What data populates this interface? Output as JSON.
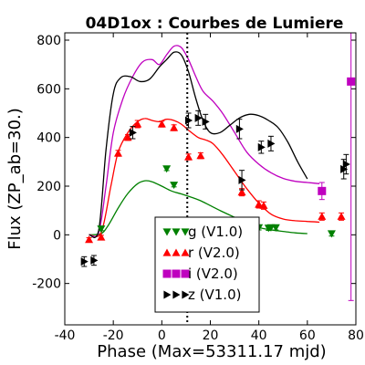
{
  "chart_data": {
    "type": "scatter",
    "title": "04D1ox : Courbes de Lumiere",
    "xlabel": "Phase (Max=53311.17 mjd)",
    "ylabel": "Flux (ZP_ab=30.)",
    "xlim": [
      -40,
      80
    ],
    "ylim": [
      -370,
      830
    ],
    "xticks": [
      -40,
      -20,
      0,
      20,
      40,
      60,
      80
    ],
    "yticks": [
      -200,
      0,
      200,
      400,
      600,
      800
    ],
    "xtick_labels": [
      "-40",
      "-20",
      "0",
      "20",
      "40",
      "60",
      "80"
    ],
    "ytick_labels": [
      "-200",
      "0",
      "200",
      "400",
      "600",
      "800"
    ],
    "vline_x": 10.5,
    "legend_position": "lower-center",
    "series": [
      {
        "name": "g (V1.0)",
        "color": "#008000",
        "marker": "triangle-down",
        "points": [
          {
            "x": -25,
            "y": 25,
            "err": 8
          },
          {
            "x": 2,
            "y": 272,
            "err": 8
          },
          {
            "x": 5,
            "y": 205,
            "err": 8
          },
          {
            "x": 40,
            "y": 30,
            "err": 10
          },
          {
            "x": 44,
            "y": 28,
            "err": 10
          },
          {
            "x": 45,
            "y": 30,
            "err": 10
          },
          {
            "x": 47,
            "y": 30,
            "err": 10
          },
          {
            "x": 70,
            "y": 5,
            "err": 10
          }
        ],
        "model": [
          [
            -30,
            0
          ],
          [
            -25,
            5
          ],
          [
            -22,
            40
          ],
          [
            -18,
            110
          ],
          [
            -14,
            170
          ],
          [
            -10,
            210
          ],
          [
            -7,
            222
          ],
          [
            -4,
            218
          ],
          [
            0,
            200
          ],
          [
            4,
            180
          ],
          [
            8,
            168
          ],
          [
            12,
            155
          ],
          [
            16,
            140
          ],
          [
            20,
            120
          ],
          [
            25,
            95
          ],
          [
            30,
            72
          ],
          [
            35,
            50
          ],
          [
            40,
            30
          ],
          [
            45,
            20
          ],
          [
            50,
            14
          ],
          [
            55,
            8
          ],
          [
            60,
            5
          ]
        ]
      },
      {
        "name": "r (V2.0)",
        "color": "#ff0000",
        "marker": "triangle-up",
        "points": [
          {
            "x": -30,
            "y": -20,
            "err": 8
          },
          {
            "x": -25,
            "y": -10,
            "err": 8
          },
          {
            "x": -18,
            "y": 335,
            "err": 12
          },
          {
            "x": -14,
            "y": 400,
            "err": 12
          },
          {
            "x": -10,
            "y": 455,
            "err": 15
          },
          {
            "x": 0,
            "y": 455,
            "err": 12
          },
          {
            "x": 5,
            "y": 440,
            "err": 12
          },
          {
            "x": 11,
            "y": 320,
            "err": 12
          },
          {
            "x": 16,
            "y": 325,
            "err": 12
          },
          {
            "x": 33,
            "y": 175,
            "err": 15
          },
          {
            "x": 40,
            "y": 125,
            "err": 15
          },
          {
            "x": 42,
            "y": 120,
            "err": 15
          },
          {
            "x": 66,
            "y": 75,
            "err": 15
          },
          {
            "x": 74,
            "y": 75,
            "err": 15
          }
        ],
        "model": [
          [
            -30,
            0
          ],
          [
            -25,
            10
          ],
          [
            -21,
            200
          ],
          [
            -18,
            340
          ],
          [
            -14,
            420
          ],
          [
            -10,
            465
          ],
          [
            -7,
            478
          ],
          [
            -4,
            470
          ],
          [
            -1,
            465
          ],
          [
            2,
            475
          ],
          [
            5,
            470
          ],
          [
            8,
            455
          ],
          [
            11,
            430
          ],
          [
            15,
            400
          ],
          [
            18,
            390
          ],
          [
            21,
            375
          ],
          [
            25,
            330
          ],
          [
            30,
            260
          ],
          [
            35,
            190
          ],
          [
            40,
            130
          ],
          [
            45,
            85
          ],
          [
            50,
            65
          ],
          [
            55,
            58
          ],
          [
            60,
            55
          ],
          [
            65,
            52
          ]
        ]
      },
      {
        "name": "i (V2.0)",
        "color": "#bf00bf",
        "marker": "square",
        "points": [
          {
            "x": 66,
            "y": 180,
            "err": 35
          },
          {
            "x": 78,
            "y": 630,
            "err": 900
          }
        ],
        "model": [
          [
            -30,
            0
          ],
          [
            -26,
            10
          ],
          [
            -23,
            200
          ],
          [
            -20,
            420
          ],
          [
            -16,
            560
          ],
          [
            -12,
            650
          ],
          [
            -8,
            710
          ],
          [
            -4,
            720
          ],
          [
            -1,
            700
          ],
          [
            2,
            740
          ],
          [
            5,
            775
          ],
          [
            8,
            770
          ],
          [
            11,
            720
          ],
          [
            14,
            650
          ],
          [
            17,
            590
          ],
          [
            21,
            550
          ],
          [
            25,
            500
          ],
          [
            30,
            420
          ],
          [
            35,
            340
          ],
          [
            40,
            290
          ],
          [
            45,
            255
          ],
          [
            50,
            232
          ],
          [
            55,
            220
          ],
          [
            60,
            215
          ],
          [
            65,
            210
          ]
        ]
      },
      {
        "name": "z (V1.0)",
        "color": "#000000",
        "marker": "triangle-right",
        "points": [
          {
            "x": -32,
            "y": -110,
            "err": 20
          },
          {
            "x": -28,
            "y": -105,
            "err": 20
          },
          {
            "x": -12,
            "y": 420,
            "err": 25
          },
          {
            "x": 11,
            "y": 470,
            "err": 30
          },
          {
            "x": 15,
            "y": 480,
            "err": 30
          },
          {
            "x": 18,
            "y": 465,
            "err": 30
          },
          {
            "x": 32,
            "y": 435,
            "err": 40
          },
          {
            "x": 33,
            "y": 225,
            "err": 40
          },
          {
            "x": 41,
            "y": 360,
            "err": 25
          },
          {
            "x": 45,
            "y": 375,
            "err": 30
          },
          {
            "x": 75,
            "y": 270,
            "err": 40
          },
          {
            "x": 76,
            "y": 290,
            "err": 40
          }
        ],
        "model": [
          [
            -30,
            0
          ],
          [
            -26,
            20
          ],
          [
            -23,
            350
          ],
          [
            -20,
            580
          ],
          [
            -17,
            645
          ],
          [
            -13,
            650
          ],
          [
            -9,
            630
          ],
          [
            -5,
            640
          ],
          [
            -1,
            690
          ],
          [
            2,
            720
          ],
          [
            5,
            750
          ],
          [
            8,
            740
          ],
          [
            11,
            670
          ],
          [
            14,
            560
          ],
          [
            17,
            470
          ],
          [
            20,
            420
          ],
          [
            24,
            420
          ],
          [
            28,
            450
          ],
          [
            32,
            480
          ],
          [
            36,
            495
          ],
          [
            40,
            490
          ],
          [
            44,
            470
          ],
          [
            48,
            440
          ],
          [
            52,
            380
          ],
          [
            56,
            300
          ],
          [
            60,
            230
          ]
        ]
      }
    ]
  }
}
